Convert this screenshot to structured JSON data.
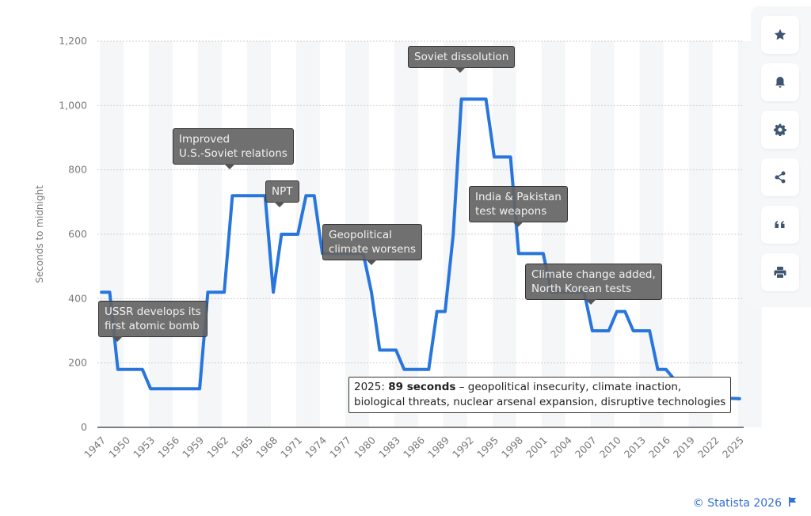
{
  "chart_data": {
    "type": "line",
    "title": "",
    "xlabel": "",
    "ylabel": "Seconds to midnight",
    "ylim": [
      0,
      1200
    ],
    "yticks": [
      0,
      200,
      400,
      600,
      800,
      1000,
      1200
    ],
    "ytick_labels": [
      "0",
      "200",
      "400",
      "600",
      "800",
      "1,000",
      "1,200"
    ],
    "xlim": [
      1947,
      2025
    ],
    "xtick_labels": [
      "1947",
      "1950",
      "1953",
      "1956",
      "1959",
      "1962",
      "1965",
      "1968",
      "1971",
      "1974",
      "1977",
      "1980",
      "1983",
      "1986",
      "1989",
      "1992",
      "1995",
      "1998",
      "2001",
      "2004",
      "2007",
      "2010",
      "2013",
      "2016",
      "2019",
      "2022",
      "2025"
    ],
    "grid": true,
    "legend": "none",
    "series": [
      {
        "name": "Seconds to midnight",
        "color": "#2876dd",
        "x": [
          1947,
          1948,
          1949,
          1950,
          1951,
          1952,
          1953,
          1954,
          1955,
          1956,
          1957,
          1958,
          1959,
          1960,
          1961,
          1962,
          1963,
          1964,
          1965,
          1966,
          1967,
          1968,
          1969,
          1970,
          1971,
          1972,
          1973,
          1974,
          1975,
          1976,
          1977,
          1978,
          1979,
          1980,
          1981,
          1982,
          1983,
          1984,
          1985,
          1986,
          1987,
          1988,
          1989,
          1990,
          1991,
          1992,
          1993,
          1994,
          1995,
          1996,
          1997,
          1998,
          1999,
          2000,
          2001,
          2002,
          2003,
          2004,
          2005,
          2006,
          2007,
          2008,
          2009,
          2010,
          2011,
          2012,
          2013,
          2014,
          2015,
          2016,
          2017,
          2018,
          2019,
          2020,
          2021,
          2022,
          2023,
          2024,
          2025
        ],
        "values": [
          420,
          420,
          180,
          180,
          180,
          180,
          120,
          120,
          120,
          120,
          120,
          120,
          120,
          420,
          420,
          420,
          720,
          720,
          720,
          720,
          720,
          420,
          600,
          600,
          600,
          720,
          720,
          540,
          540,
          540,
          540,
          540,
          540,
          420,
          240,
          240,
          240,
          180,
          180,
          180,
          180,
          360,
          360,
          600,
          1020,
          1020,
          1020,
          1020,
          840,
          840,
          840,
          540,
          540,
          540,
          540,
          420,
          420,
          420,
          420,
          420,
          300,
          300,
          300,
          360,
          360,
          300,
          300,
          300,
          180,
          180,
          150,
          120,
          120,
          100,
          100,
          100,
          90,
          90,
          89
        ]
      }
    ],
    "annotations": [
      {
        "label": "USSR develops its first atomic bomb",
        "lines": [
          "USSR develops its",
          "first atomic bomb"
        ],
        "year": 1949
      },
      {
        "label": "Improved U.S.-Soviet relations",
        "lines": [
          "Improved",
          "U.S.-Soviet relations"
        ],
        "year": 1963
      },
      {
        "label": "NPT",
        "lines": [
          "NPT"
        ],
        "year": 1969
      },
      {
        "label": "Geopolitical climate worsens",
        "lines": [
          "Geopolitical",
          "climate worsens"
        ],
        "year": 1980
      },
      {
        "label": "Soviet dissolution",
        "lines": [
          "Soviet dissolution"
        ],
        "year": 1991
      },
      {
        "label": "India & Pakistan test weapons",
        "lines": [
          "India & Pakistan",
          "test weapons"
        ],
        "year": 1998
      },
      {
        "label": "Climate change added, North Korean tests",
        "lines": [
          "Climate change added,",
          "North Korean tests"
        ],
        "year": 2007
      }
    ],
    "callout": {
      "prefix": "2025: ",
      "bold": "89 seconds",
      "line1_rest": " – geopolitical insecurity, climate inaction,",
      "line2": "biological threats, nuclear arsenal expansion, disruptive technologies"
    }
  },
  "toolbar": {
    "buttons": [
      {
        "name": "favorite",
        "icon": "star-icon"
      },
      {
        "name": "notification",
        "icon": "bell-icon"
      },
      {
        "name": "settings",
        "icon": "gear-icon"
      },
      {
        "name": "share",
        "icon": "share-icon"
      },
      {
        "name": "cite",
        "icon": "quote-icon"
      },
      {
        "name": "print",
        "icon": "printer-icon"
      }
    ]
  },
  "footer": {
    "credit": "© Statista 2026",
    "flag_icon": "flag-icon"
  }
}
